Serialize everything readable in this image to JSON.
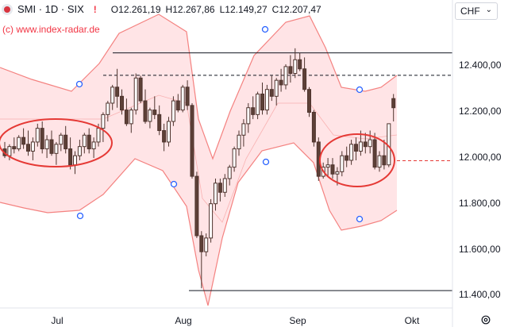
{
  "header": {
    "symbol": "SMI · 1D · SIX",
    "warning": "!",
    "open_label": "O",
    "open": "12.261,19",
    "high_label": "H",
    "high": "12.267,86",
    "low_label": "L",
    "low": "12.149,27",
    "close_label": "C",
    "close": "12.207,47"
  },
  "watermark": "(c) www.index-radar.de",
  "currency": {
    "value": "CHF",
    "chevron": "⌄"
  },
  "y_axis": [
    "12.400,00",
    "12.200,00",
    "12.000,00",
    "11.800,00",
    "11.600,00",
    "11.400,00"
  ],
  "x_axis": [
    "Jul",
    "Aug",
    "Sep",
    "Okt"
  ],
  "settings_icon": "gear-icon",
  "colors": {
    "up": "#ffffff",
    "down": "#5d4037",
    "band": "#ffcdd2",
    "band_line": "#ef5350",
    "circle": "#e53935",
    "marker": "#2962ff"
  },
  "chart_data": {
    "type": "candlestick",
    "ylim": [
      11380,
      12540
    ],
    "levels": {
      "solid_top": 12450,
      "dashed_top": 12352,
      "red_dashed": 11978,
      "solid_bottom": 11410
    },
    "candles": [
      [
        12030,
        12060,
        11990,
        12000
      ],
      [
        12000,
        12050,
        11980,
        12040
      ],
      [
        12040,
        12080,
        12010,
        12030
      ],
      [
        12030,
        12090,
        12020,
        12080
      ],
      [
        12080,
        12120,
        12030,
        12050
      ],
      [
        12050,
        12110,
        12000,
        12020
      ],
      [
        12020,
        12080,
        11980,
        12060
      ],
      [
        12060,
        12140,
        12040,
        12120
      ],
      [
        12120,
        12150,
        12010,
        12030
      ],
      [
        12030,
        12090,
        11990,
        12070
      ],
      [
        12070,
        12110,
        12000,
        12010
      ],
      [
        12010,
        12060,
        11960,
        12050
      ],
      [
        12050,
        12100,
        12020,
        12090
      ],
      [
        12090,
        12130,
        12010,
        12030
      ],
      [
        12030,
        12080,
        11940,
        11960
      ],
      [
        11960,
        12020,
        11920,
        12000
      ],
      [
        12000,
        12070,
        11980,
        12040
      ],
      [
        12040,
        12100,
        12010,
        12090
      ],
      [
        12090,
        12120,
        12010,
        12030
      ],
      [
        12030,
        12080,
        11990,
        12060
      ],
      [
        12060,
        12140,
        12040,
        12120
      ],
      [
        12120,
        12190,
        12060,
        12180
      ],
      [
        12180,
        12240,
        12150,
        12230
      ],
      [
        12230,
        12310,
        12200,
        12300
      ],
      [
        12300,
        12380,
        12210,
        12260
      ],
      [
        12260,
        12290,
        12180,
        12200
      ],
      [
        12200,
        12250,
        12130,
        12140
      ],
      [
        12140,
        12210,
        12100,
        12200
      ],
      [
        12200,
        12360,
        12180,
        12340
      ],
      [
        12340,
        12350,
        12230,
        12240
      ],
      [
        12240,
        12290,
        12140,
        12150
      ],
      [
        12150,
        12210,
        12120,
        12200
      ],
      [
        12200,
        12260,
        12160,
        12180
      ],
      [
        12180,
        12220,
        12090,
        12110
      ],
      [
        12110,
        12140,
        12020,
        12060
      ],
      [
        12060,
        12170,
        12040,
        12150
      ],
      [
        12150,
        12260,
        12130,
        12240
      ],
      [
        12240,
        12270,
        12190,
        12200
      ],
      [
        12200,
        12310,
        12190,
        12300
      ],
      [
        12300,
        12330,
        12200,
        12220
      ],
      [
        12220,
        12230,
        11900,
        11910
      ],
      [
        11910,
        11930,
        11640,
        11650
      ],
      [
        11650,
        11670,
        11420,
        11580
      ],
      [
        11580,
        11660,
        11560,
        11640
      ],
      [
        11640,
        11810,
        11620,
        11790
      ],
      [
        11790,
        11900,
        11760,
        11880
      ],
      [
        11880,
        11900,
        11800,
        11840
      ],
      [
        11840,
        11920,
        11820,
        11900
      ],
      [
        11900,
        11960,
        11870,
        11950
      ],
      [
        11950,
        12040,
        11930,
        12030
      ],
      [
        12030,
        12110,
        12000,
        12090
      ],
      [
        12090,
        12160,
        12040,
        12140
      ],
      [
        12140,
        12230,
        12100,
        12210
      ],
      [
        12210,
        12260,
        12160,
        12180
      ],
      [
        12180,
        12280,
        12160,
        12270
      ],
      [
        12270,
        12320,
        12180,
        12200
      ],
      [
        12200,
        12310,
        12180,
        12290
      ],
      [
        12290,
        12350,
        12240,
        12260
      ],
      [
        12260,
        12340,
        12220,
        12330
      ],
      [
        12330,
        12380,
        12280,
        12310
      ],
      [
        12310,
        12400,
        12290,
        12390
      ],
      [
        12390,
        12440,
        12320,
        12360
      ],
      [
        12360,
        12470,
        12340,
        12420
      ],
      [
        12420,
        12450,
        12370,
        12380
      ],
      [
        12380,
        12430,
        12280,
        12290
      ],
      [
        12290,
        12300,
        12170,
        12190
      ],
      [
        12190,
        12200,
        12040,
        12060
      ],
      [
        12060,
        12080,
        11890,
        11910
      ],
      [
        11910,
        11970,
        11900,
        11950
      ],
      [
        11950,
        11990,
        11910,
        11960
      ],
      [
        11960,
        11990,
        11900,
        11920
      ],
      [
        11920,
        11950,
        11870,
        11930
      ],
      [
        11930,
        12020,
        11910,
        12000
      ],
      [
        12000,
        12040,
        11950,
        11980
      ],
      [
        11980,
        12070,
        11960,
        12050
      ],
      [
        12050,
        12080,
        11980,
        12020
      ],
      [
        12020,
        12110,
        12000,
        12060
      ],
      [
        12060,
        12100,
        12010,
        12040
      ],
      [
        12040,
        12110,
        12010,
        12070
      ],
      [
        12070,
        12100,
        11940,
        11950
      ],
      [
        11950,
        12020,
        11930,
        12000
      ],
      [
        12000,
        12070,
        11940,
        11960
      ],
      [
        11960,
        12140,
        11950,
        12140
      ],
      [
        12250,
        12270,
        12150,
        12210
      ]
    ]
  }
}
